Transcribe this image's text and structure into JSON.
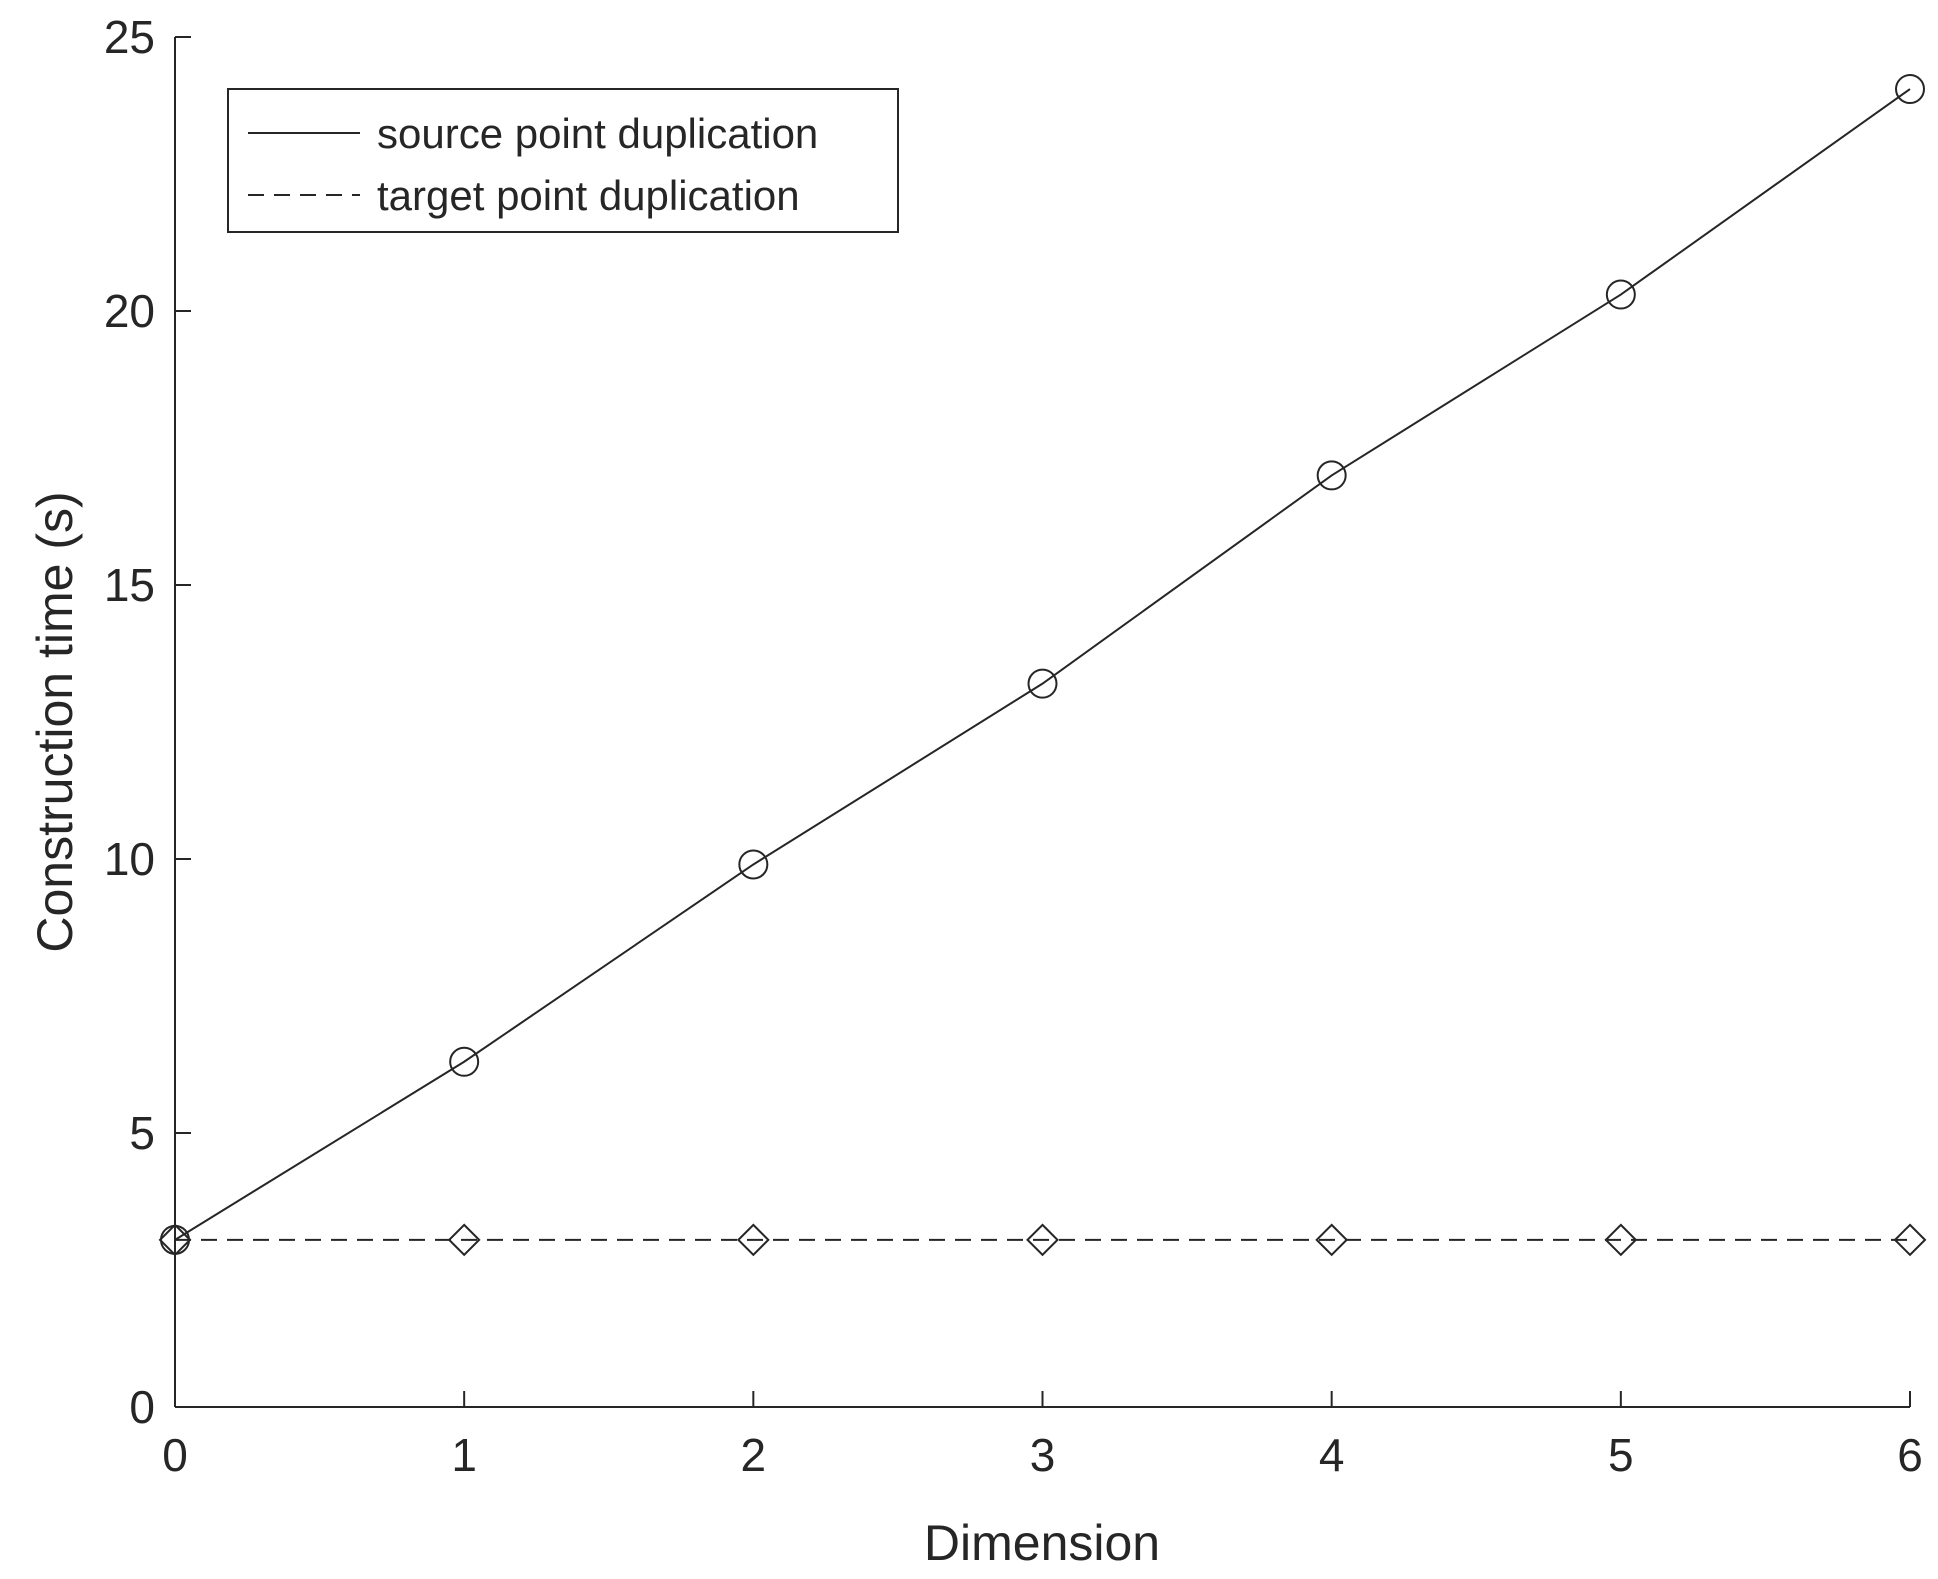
{
  "chart_data": {
    "type": "line",
    "title": "",
    "xlabel": "Dimension",
    "ylabel": "Construction time (s)",
    "xlim": [
      0,
      6
    ],
    "ylim": [
      0,
      25
    ],
    "xticks": [
      0,
      1,
      2,
      3,
      4,
      5,
      6
    ],
    "yticks": [
      0,
      5,
      10,
      15,
      20,
      25
    ],
    "grid": false,
    "legend_position": "top-left",
    "series": [
      {
        "name": "source point duplication",
        "line_style": "solid",
        "marker": "circle",
        "color": "#262626",
        "x": [
          0,
          1,
          2,
          3,
          4,
          5,
          6
        ],
        "y": [
          3.05,
          6.3,
          9.9,
          13.2,
          17.0,
          20.3,
          24.05
        ]
      },
      {
        "name": "target point duplication",
        "line_style": "dashed",
        "marker": "diamond",
        "color": "#262626",
        "x": [
          0,
          1,
          2,
          3,
          4,
          5,
          6
        ],
        "y": [
          3.05,
          3.05,
          3.05,
          3.05,
          3.05,
          3.05,
          3.05
        ]
      }
    ]
  }
}
